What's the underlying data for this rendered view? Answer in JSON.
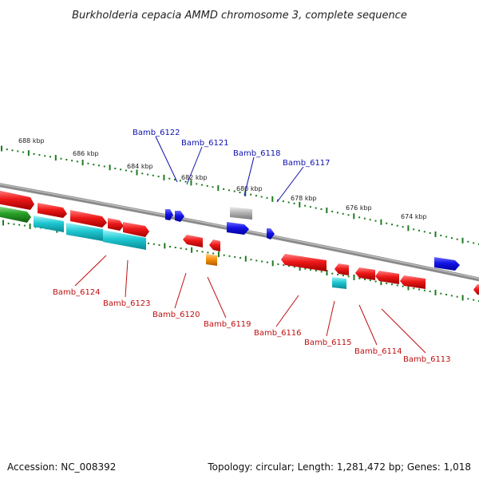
{
  "title": "Burkholderia cepacia AMMD chromosome 3, complete sequence",
  "footer": {
    "accession": "Accession: NC_008392",
    "stats": "Topology: circular; Length: 1,281,472 bp; Genes: 1,018"
  },
  "colors": {
    "backbone": "#8c8c8c",
    "tick": "#1e7a1e",
    "forward_label": "#1010b0",
    "reverse_label": "#c01010",
    "red": "#e8141e",
    "blue": "#1414e6",
    "cyan": "#1ec8d2",
    "green": "#28a028",
    "gray": "#b4b4b4",
    "orange": "#f5900a"
  },
  "scale": {
    "labels": [
      "688 kbp",
      "686 kbp",
      "684 kbp",
      "682 kbp",
      "680 kbp",
      "678 kbp",
      "676 kbp",
      "674 kbp"
    ]
  },
  "gene_labels": {
    "forward": [
      "Bamb_6122",
      "Bamb_6121",
      "Bamb_6118",
      "Bamb_6117"
    ],
    "reverse": [
      "Bamb_6124",
      "Bamb_6123",
      "Bamb_6120",
      "Bamb_6119",
      "Bamb_6116",
      "Bamb_6115",
      "Bamb_6114",
      "Bamb_6113"
    ]
  }
}
